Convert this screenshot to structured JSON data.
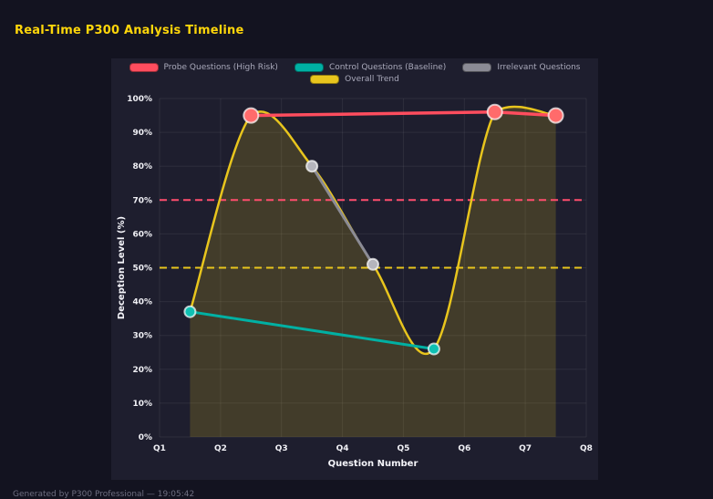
{
  "page": {
    "title": "Real-Time P300 Analysis Timeline",
    "footer": "Generated by P300 Professional — 19:05:42"
  },
  "colors": {
    "background": "#131320",
    "panel": "#1e1e2e",
    "title": "#ffd60a",
    "grid": "rgba(255,255,255,0.07)",
    "tick_text": "#f0f0f5",
    "axis_title_text": "#f5f5fa",
    "legend_text": "#a9a9ba"
  },
  "chart_data": {
    "type": "line",
    "title": "Real-Time P300 Analysis Timeline",
    "xlabel": "Question Number",
    "ylabel": "Deception Level (%)",
    "x_ticks": [
      "Q1",
      "Q2",
      "Q3",
      "Q4",
      "Q5",
      "Q6",
      "Q7",
      "Q8"
    ],
    "x_tick_values": [
      1,
      2,
      3,
      4,
      5,
      6,
      7,
      8
    ],
    "x_range": [
      1,
      8
    ],
    "y_range": [
      0,
      100
    ],
    "y_tick_step": 10,
    "y_tick_suffix": "%",
    "grid": true,
    "legend_position": "top",
    "legend_rows": [
      [
        "Probe Questions (High Risk)",
        "Control Questions (Baseline)",
        "Irrelevant Questions"
      ],
      [
        "Overall Trend"
      ]
    ],
    "series": [
      {
        "name": "Overall Trend",
        "color": "#e8c51d",
        "line_width": 2.5,
        "smooth": true,
        "area": true,
        "area_color": "rgba(232,197,29,0.18)",
        "marker_radius": 0,
        "points": [
          [
            1.5,
            37
          ],
          [
            2.5,
            95
          ],
          [
            3.5,
            80
          ],
          [
            4.5,
            51
          ],
          [
            5.5,
            26
          ],
          [
            6.5,
            96
          ],
          [
            7.5,
            95
          ]
        ]
      },
      {
        "name": "Irrelevant Questions",
        "color": "#8b8b95",
        "line_width": 3,
        "smooth": false,
        "area": false,
        "marker_radius": 6,
        "marker_fill": "#b5b5bd",
        "points": [
          [
            3.5,
            80
          ],
          [
            4.5,
            51
          ]
        ]
      },
      {
        "name": "Control Questions (Baseline)",
        "color": "#00b0a3",
        "line_width": 3,
        "smooth": false,
        "area": false,
        "marker_radius": 6,
        "marker_fill": "#0fc0b2",
        "points": [
          [
            1.5,
            37
          ],
          [
            5.5,
            26
          ]
        ]
      },
      {
        "name": "Probe Questions (High Risk)",
        "color": "#ff4d5e",
        "line_width": 3.5,
        "smooth": false,
        "area": false,
        "marker_radius": 8,
        "marker_fill": "#ff6b6b",
        "points": [
          [
            2.5,
            95
          ],
          [
            6.5,
            96
          ],
          [
            7.5,
            95
          ]
        ]
      }
    ],
    "thresholds": [
      {
        "value": 70,
        "color": "#ff4d6d"
      },
      {
        "value": 50,
        "color": "#e8c51d"
      }
    ]
  }
}
